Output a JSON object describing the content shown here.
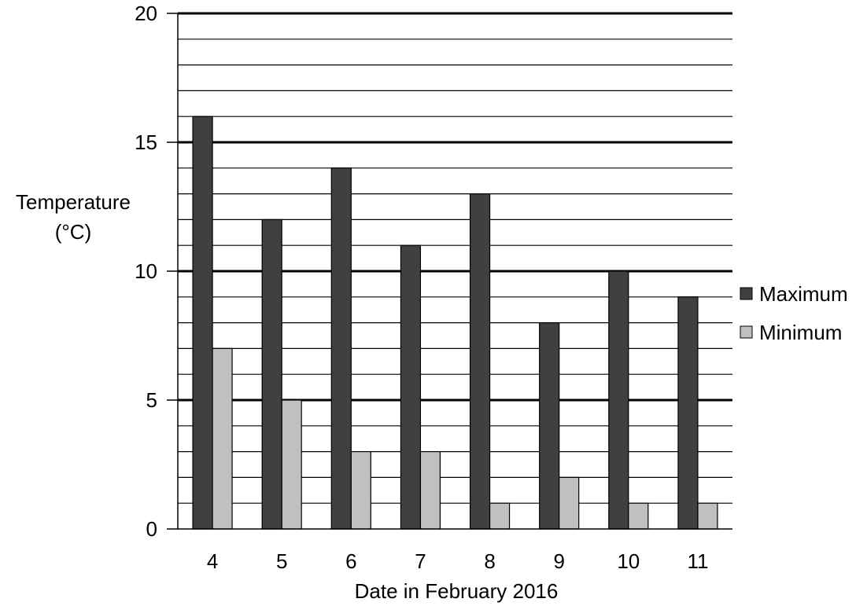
{
  "chart_data": {
    "type": "bar",
    "categories": [
      "4",
      "5",
      "6",
      "7",
      "8",
      "9",
      "10",
      "11"
    ],
    "series": [
      {
        "name": "Maximum",
        "values": [
          16,
          12,
          14,
          11,
          13,
          8,
          10,
          9
        ]
      },
      {
        "name": "Minimum",
        "values": [
          7,
          5,
          3,
          3,
          1,
          2,
          1,
          1
        ]
      }
    ],
    "ylabel_line1": "Temperature",
    "ylabel_line2": "(°C)",
    "xlabel": "Date in February 2016",
    "ylim": [
      0,
      20
    ],
    "y_ticks": [
      "0",
      "5",
      "10",
      "15",
      "20"
    ],
    "minor_grid_step": 1,
    "grid": true,
    "legend_placement": "right",
    "colors": {
      "Maximum": "#404040",
      "Minimum": "#c0c0c0"
    }
  }
}
